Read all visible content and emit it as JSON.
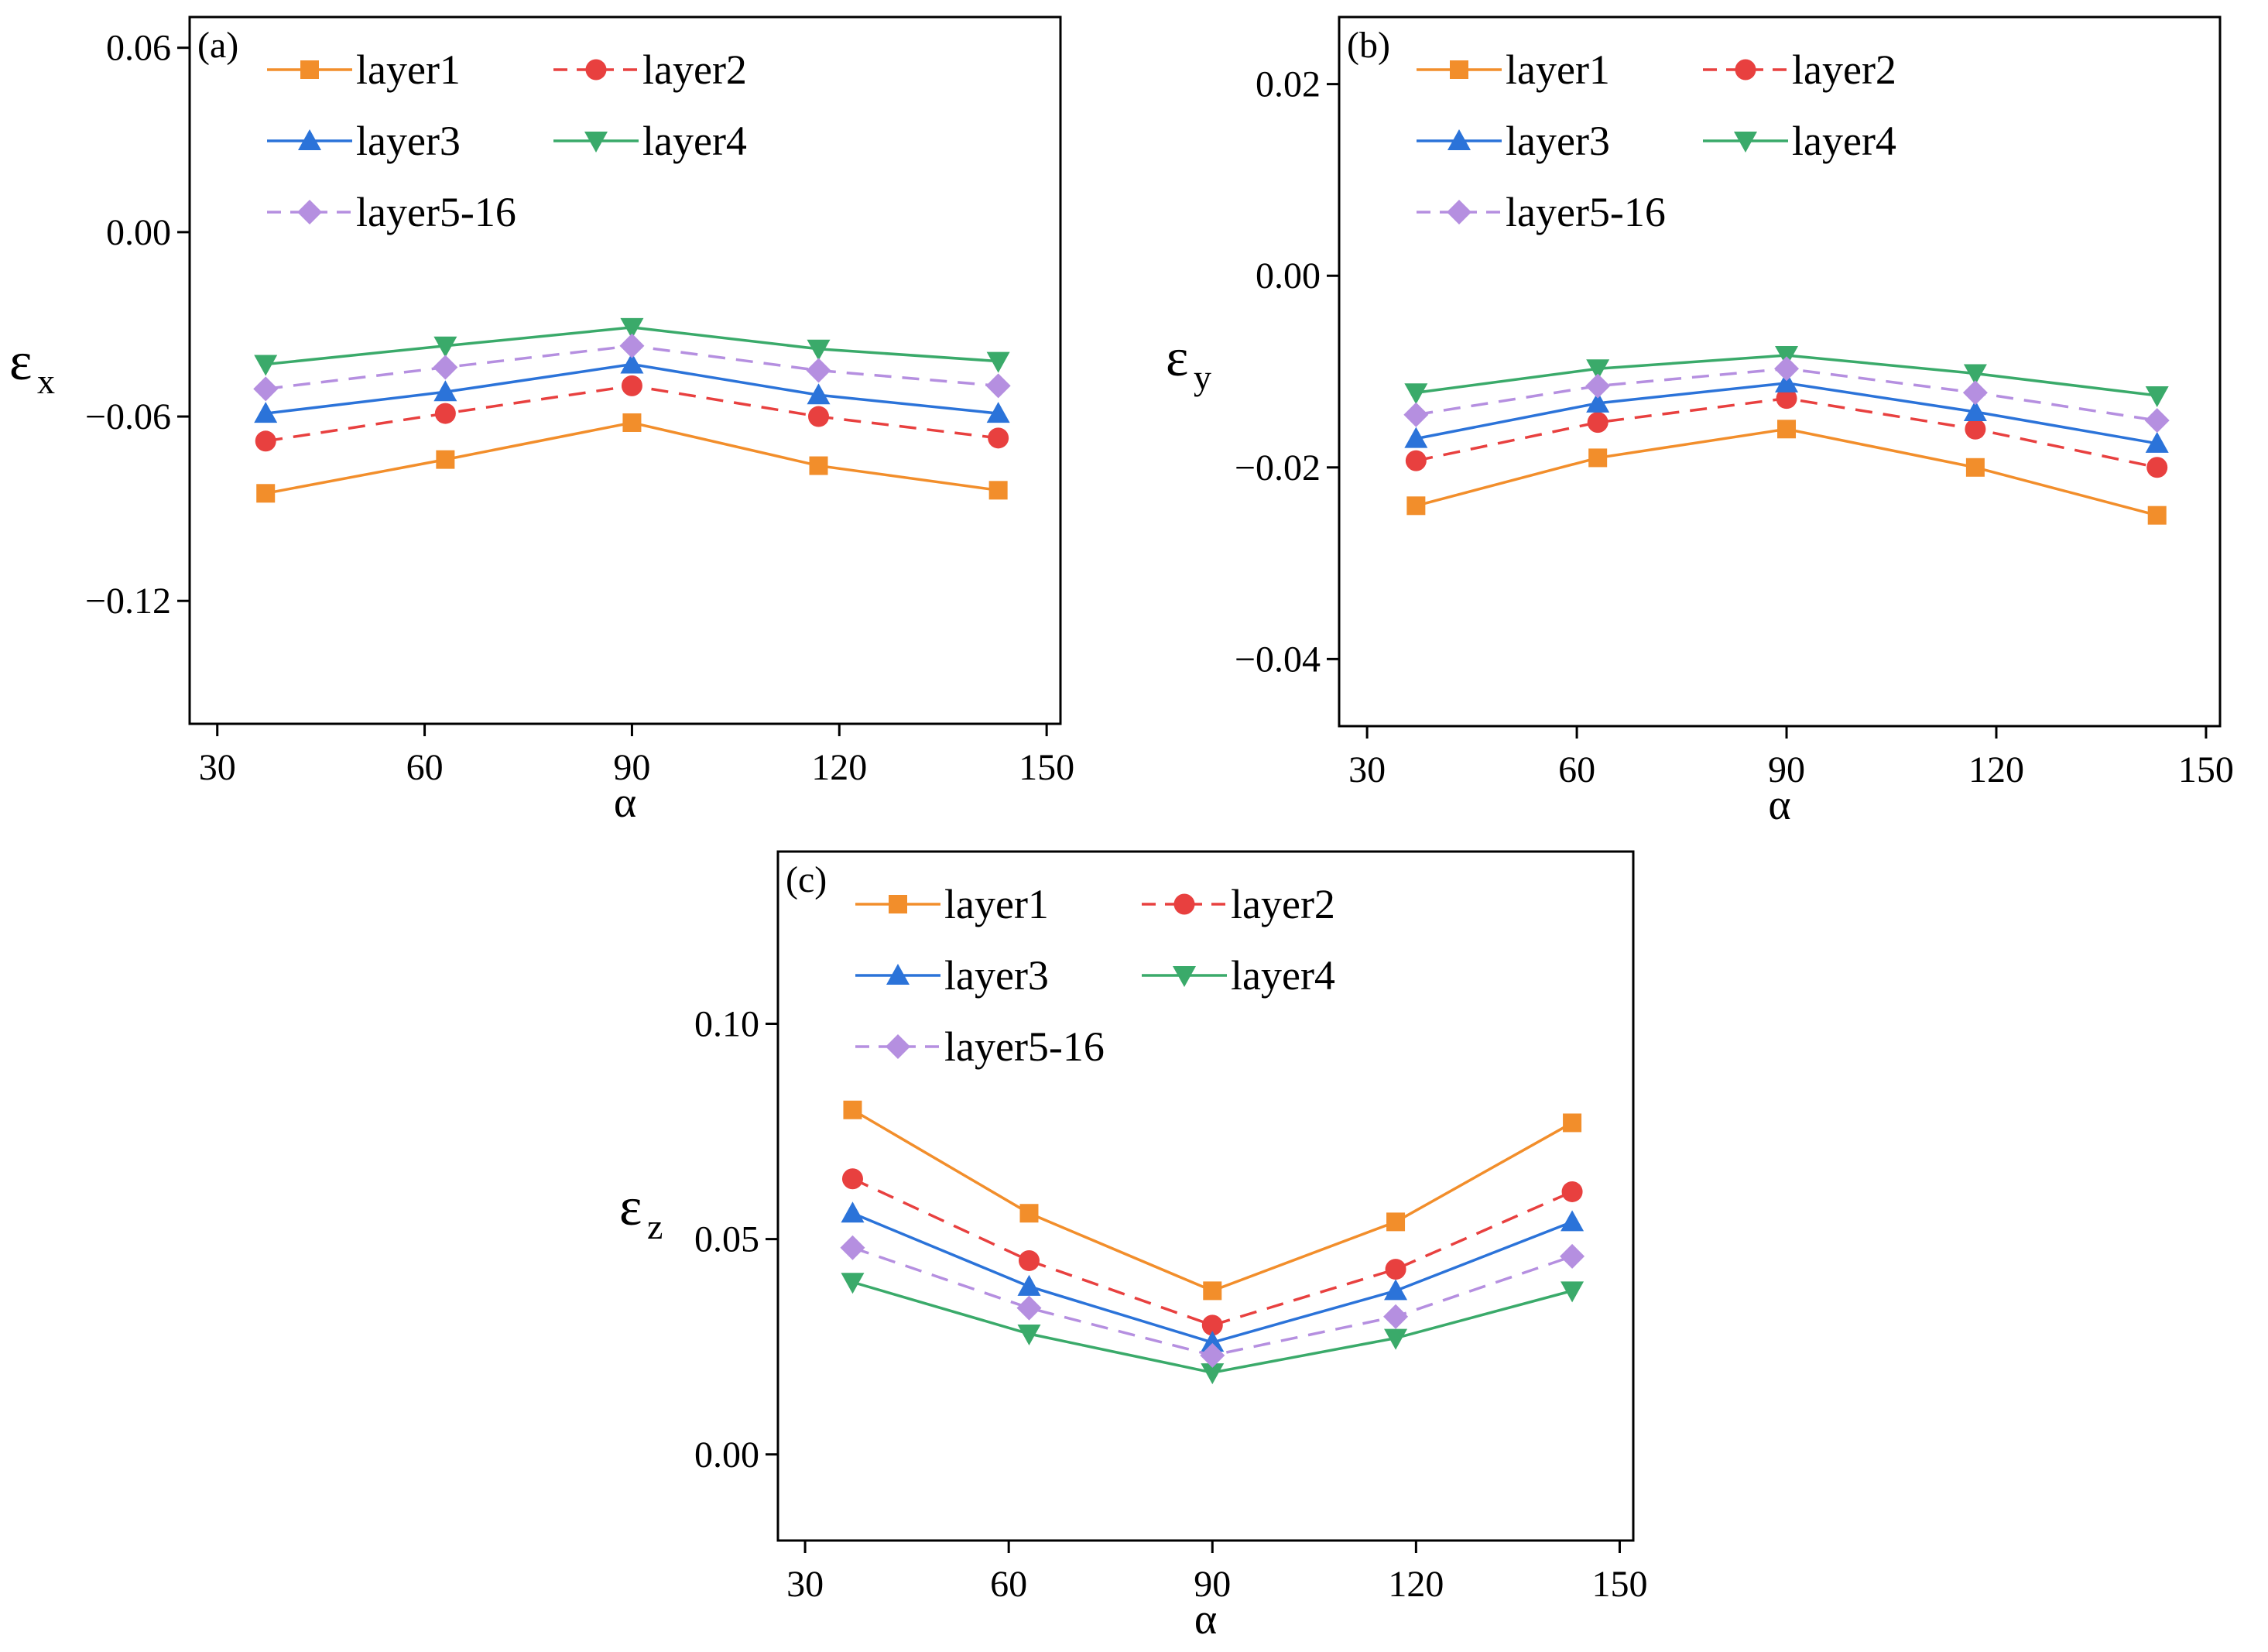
{
  "chart_data": [
    {
      "type": "line",
      "panel_label": "(a)",
      "xlabel": "α",
      "ylabel": "ε",
      "ylabel_sub": "x",
      "xlim": [
        26,
        152
      ],
      "ylim": [
        -0.16,
        0.07
      ],
      "x": [
        37,
        63,
        90,
        117,
        143
      ],
      "xticks": [
        30,
        60,
        90,
        120,
        150
      ],
      "xtick_labels": [
        "30",
        "60",
        "90",
        "120",
        "150"
      ],
      "yticks": [
        0.06,
        0.0,
        -0.06,
        -0.12
      ],
      "ytick_labels": [
        "0.06",
        "0.00",
        "−0.06",
        "−0.12"
      ],
      "legend_position": "top",
      "series": [
        {
          "name": "layer1",
          "values": [
            -0.085,
            -0.074,
            -0.062,
            -0.076,
            -0.084
          ]
        },
        {
          "name": "layer2",
          "values": [
            -0.068,
            -0.059,
            -0.05,
            -0.06,
            -0.067
          ]
        },
        {
          "name": "layer3",
          "values": [
            -0.059,
            -0.052,
            -0.043,
            -0.053,
            -0.059
          ]
        },
        {
          "name": "layer4",
          "values": [
            -0.043,
            -0.037,
            -0.031,
            -0.038,
            -0.042
          ]
        },
        {
          "name": "layer5-16",
          "values": [
            -0.051,
            -0.044,
            -0.037,
            -0.045,
            -0.05
          ]
        }
      ]
    },
    {
      "type": "line",
      "panel_label": "(b)",
      "xlabel": "α",
      "ylabel": "ε",
      "ylabel_sub": "y",
      "xlim": [
        26,
        152
      ],
      "ylim": [
        -0.047,
        0.027
      ],
      "x": [
        37,
        63,
        90,
        117,
        143
      ],
      "xticks": [
        30,
        60,
        90,
        120,
        150
      ],
      "xtick_labels": [
        "30",
        "60",
        "90",
        "120",
        "150"
      ],
      "yticks": [
        0.02,
        0.0,
        -0.02,
        -0.04
      ],
      "ytick_labels": [
        "0.02",
        "0.00",
        "−0.02",
        "−0.04"
      ],
      "legend_position": "top",
      "series": [
        {
          "name": "layer1",
          "values": [
            -0.024,
            -0.019,
            -0.016,
            -0.02,
            -0.025
          ]
        },
        {
          "name": "layer2",
          "values": [
            -0.0193,
            -0.0153,
            -0.0128,
            -0.016,
            -0.02
          ]
        },
        {
          "name": "layer3",
          "values": [
            -0.017,
            -0.0133,
            -0.0112,
            -0.0142,
            -0.0175
          ]
        },
        {
          "name": "layer4",
          "values": [
            -0.0122,
            -0.0097,
            -0.0083,
            -0.0102,
            -0.0125
          ]
        },
        {
          "name": "layer5-16",
          "values": [
            -0.0145,
            -0.0115,
            -0.0097,
            -0.0122,
            -0.0151
          ]
        }
      ]
    },
    {
      "type": "line",
      "panel_label": "(c)",
      "xlabel": "α",
      "ylabel": "ε",
      "ylabel_sub": "z",
      "xlim": [
        26,
        152
      ],
      "ylim": [
        -0.02,
        0.14
      ],
      "x": [
        37,
        63,
        90,
        117,
        143
      ],
      "xticks": [
        30,
        60,
        90,
        120,
        150
      ],
      "xtick_labels": [
        "30",
        "60",
        "90",
        "120",
        "150"
      ],
      "yticks": [
        0.1,
        0.05,
        0.0
      ],
      "ytick_labels": [
        "0.10",
        "0.05",
        "0.00"
      ],
      "legend_position": "top",
      "series": [
        {
          "name": "layer1",
          "values": [
            0.08,
            0.056,
            0.038,
            0.054,
            0.077
          ]
        },
        {
          "name": "layer2",
          "values": [
            0.064,
            0.045,
            0.03,
            0.043,
            0.061
          ]
        },
        {
          "name": "layer3",
          "values": [
            0.056,
            0.039,
            0.026,
            0.038,
            0.054
          ]
        },
        {
          "name": "layer4",
          "values": [
            0.04,
            0.028,
            0.019,
            0.027,
            0.038
          ]
        },
        {
          "name": "layer5-16",
          "values": [
            0.048,
            0.034,
            0.023,
            0.032,
            0.046
          ]
        }
      ]
    }
  ],
  "series_styles": [
    {
      "color": "#F28E2B",
      "dash": "solid",
      "marker": "square"
    },
    {
      "color": "#E8403F",
      "dash": "dashed",
      "marker": "circle"
    },
    {
      "color": "#2B73D9",
      "dash": "solid",
      "marker": "triangle-up"
    },
    {
      "color": "#3AAA6A",
      "dash": "solid",
      "marker": "triangle-down"
    },
    {
      "color": "#B58FE0",
      "dash": "dashed",
      "marker": "diamond"
    }
  ]
}
